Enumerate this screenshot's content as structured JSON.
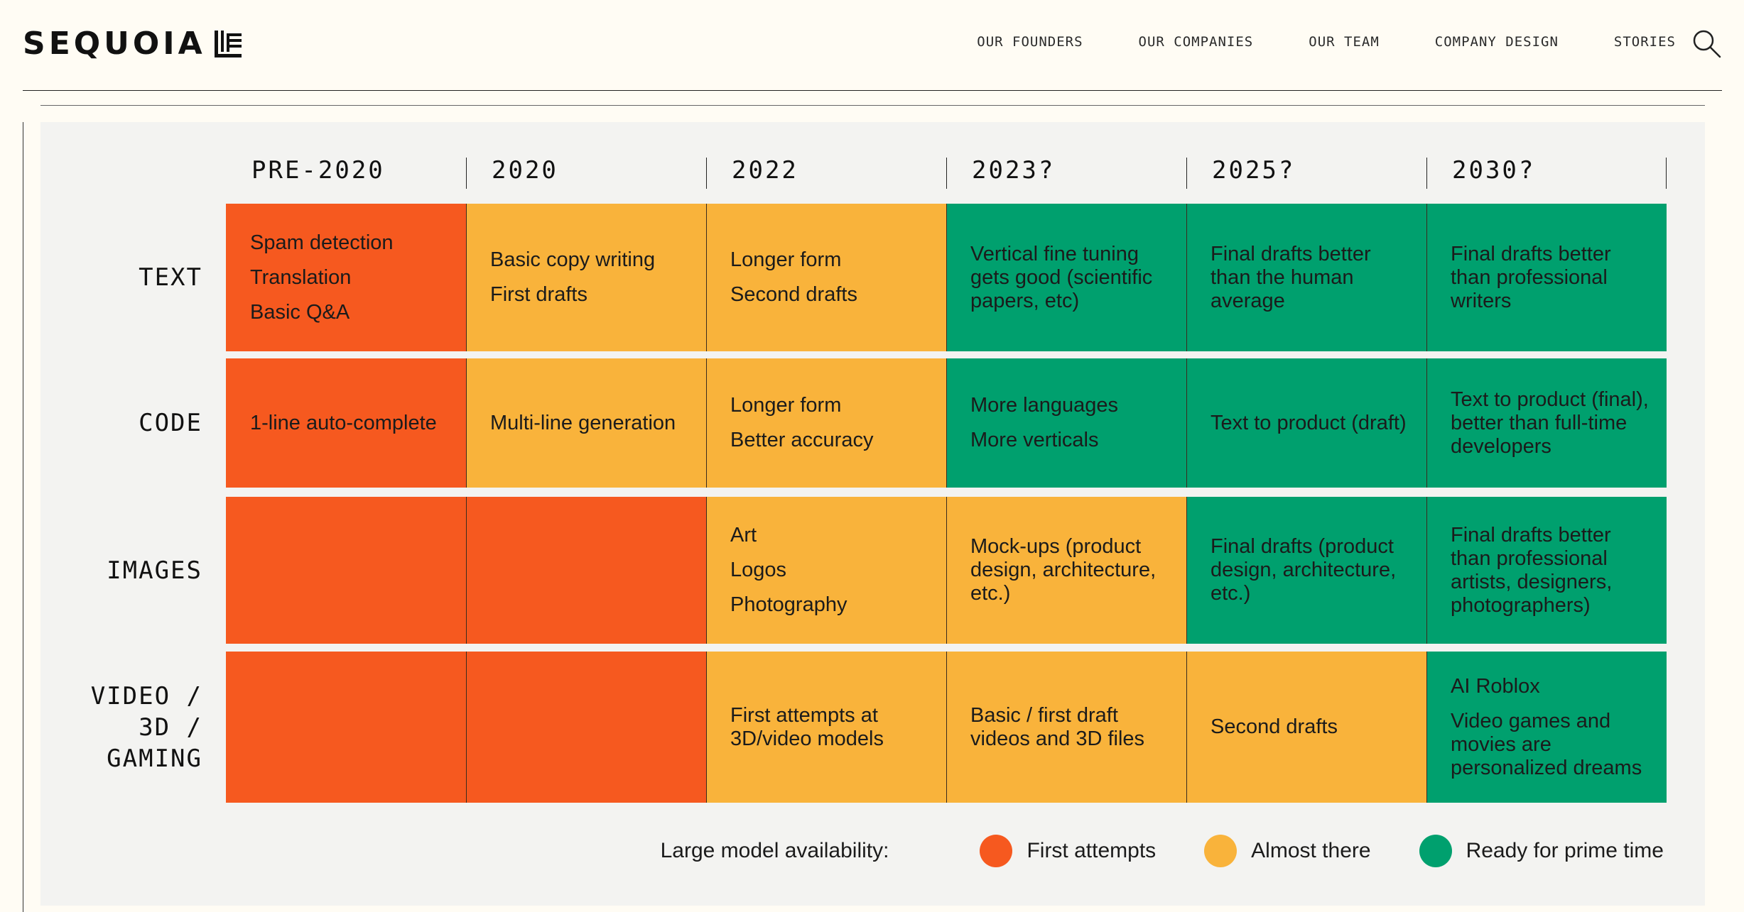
{
  "header": {
    "logo_text": "SEQUOIA",
    "nav": [
      "OUR FOUNDERS",
      "OUR COMPANIES",
      "OUR TEAM",
      "COMPANY DESIGN",
      "STORIES"
    ]
  },
  "colors": {
    "first_attempts": "#f6591f",
    "almost_there": "#f9b33b",
    "ready": "#00a06e"
  },
  "timeline": {
    "columns": [
      "PRE-2020",
      "2020",
      "2022",
      "2023?",
      "2025?",
      "2030?"
    ],
    "rows": [
      {
        "label": "TEXT",
        "cells": [
          {
            "status": "first_attempts",
            "lines": [
              "Spam detection",
              "Translation",
              "Basic Q&A"
            ],
            "tight": false
          },
          {
            "status": "almost_there",
            "lines": [
              "Basic copy writing",
              "First drafts"
            ],
            "tight": false
          },
          {
            "status": "almost_there",
            "lines": [
              "Longer form",
              "Second drafts"
            ],
            "tight": false
          },
          {
            "status": "ready",
            "lines": [
              "Vertical fine tuning",
              "gets good (scientific",
              "papers, etc)"
            ],
            "tight": true
          },
          {
            "status": "ready",
            "lines": [
              "Final drafts better",
              "than the human",
              "average"
            ],
            "tight": true
          },
          {
            "status": "ready",
            "lines": [
              "Final drafts better",
              "than professional",
              "writers"
            ],
            "tight": true
          }
        ]
      },
      {
        "label": "CODE",
        "cells": [
          {
            "status": "first_attempts",
            "lines": [
              "1-line auto-complete"
            ],
            "tight": false
          },
          {
            "status": "almost_there",
            "lines": [
              "Multi-line generation"
            ],
            "tight": false
          },
          {
            "status": "almost_there",
            "lines": [
              "Longer form",
              "Better accuracy"
            ],
            "tight": false
          },
          {
            "status": "ready",
            "lines": [
              "More languages",
              "More verticals"
            ],
            "tight": false
          },
          {
            "status": "ready",
            "lines": [
              "Text to product (draft)"
            ],
            "tight": false
          },
          {
            "status": "ready",
            "lines": [
              "Text to product (final),",
              "better than full-time",
              "developers"
            ],
            "tight": true
          }
        ]
      },
      {
        "label": "IMAGES",
        "cells": [
          {
            "status": "first_attempts",
            "lines": [],
            "tight": false
          },
          {
            "status": "first_attempts",
            "lines": [],
            "tight": false
          },
          {
            "status": "almost_there",
            "lines": [
              "Art",
              "Logos",
              "Photography"
            ],
            "tight": false
          },
          {
            "status": "almost_there",
            "lines": [
              "Mock-ups (product",
              "design, architecture,",
              "etc.)"
            ],
            "tight": true
          },
          {
            "status": "ready",
            "lines": [
              "Final drafts (product",
              "design, architecture,",
              "etc.)"
            ],
            "tight": true
          },
          {
            "status": "ready",
            "lines": [
              "Final drafts better",
              "than professional",
              "artists, designers,",
              "photographers)"
            ],
            "tight": true
          }
        ]
      },
      {
        "label": "VIDEO /\n3D /\nGAMING",
        "cells": [
          {
            "status": "first_attempts",
            "lines": [],
            "tight": false
          },
          {
            "status": "first_attempts",
            "lines": [],
            "tight": false
          },
          {
            "status": "almost_there",
            "lines": [
              "First attempts at",
              "3D/video models"
            ],
            "tight": true
          },
          {
            "status": "almost_there",
            "lines": [
              "Basic / first draft",
              "videos and 3D files"
            ],
            "tight": true
          },
          {
            "status": "almost_there",
            "lines": [
              "Second drafts"
            ],
            "tight": false
          },
          {
            "status": "ready",
            "lines": [
              "AI Roblox",
              "Video games and movies are personalized dreams"
            ],
            "tight": false
          }
        ]
      }
    ]
  },
  "legend": {
    "title": "Large model availability:",
    "items": [
      {
        "label": "First attempts",
        "status": "first_attempts"
      },
      {
        "label": "Almost there",
        "status": "almost_there"
      },
      {
        "label": "Ready for prime time",
        "status": "ready"
      }
    ]
  },
  "icons": {
    "logo_mark": "sequoia-logo-mark-icon",
    "search": "search-icon"
  }
}
